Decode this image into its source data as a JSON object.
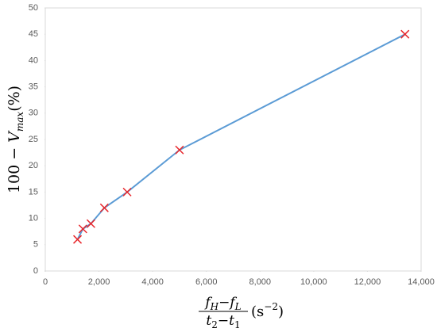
{
  "chart_data": {
    "type": "line",
    "ylabel": [
      "100 − ",
      "V",
      "max",
      "(%)"
    ],
    "xlabel": {
      "numerator": [
        "f",
        "H",
        "−",
        "f",
        "L"
      ],
      "denominator": [
        "t",
        "2",
        "−",
        "t",
        "1"
      ],
      "unit": [
        "(s",
        "−2",
        ")"
      ]
    },
    "x": [
      1200,
      1400,
      1700,
      2200,
      3050,
      5000,
      13400
    ],
    "values": [
      6,
      8,
      9,
      12,
      15,
      23,
      45
    ],
    "color": "#5b9bd5",
    "marker_color": "#e8262b",
    "xlim": [
      0,
      14000
    ],
    "xticks": [
      0,
      {
        "value": 2000,
        "label": "2,000"
      },
      {
        "value": 4000,
        "label": "4,000"
      },
      {
        "value": 6000,
        "label": "6,000"
      },
      {
        "value": 8000,
        "label": "8,000"
      },
      {
        "value": 10000,
        "label": "10,000"
      },
      {
        "value": 12000,
        "label": "12,000"
      },
      {
        "value": 14000,
        "label": "14,000"
      }
    ],
    "ylim": [
      0,
      50
    ],
    "yticks": [
      0,
      5,
      10,
      15,
      20,
      25,
      30,
      35,
      40,
      45,
      50
    ],
    "grid": false
  }
}
